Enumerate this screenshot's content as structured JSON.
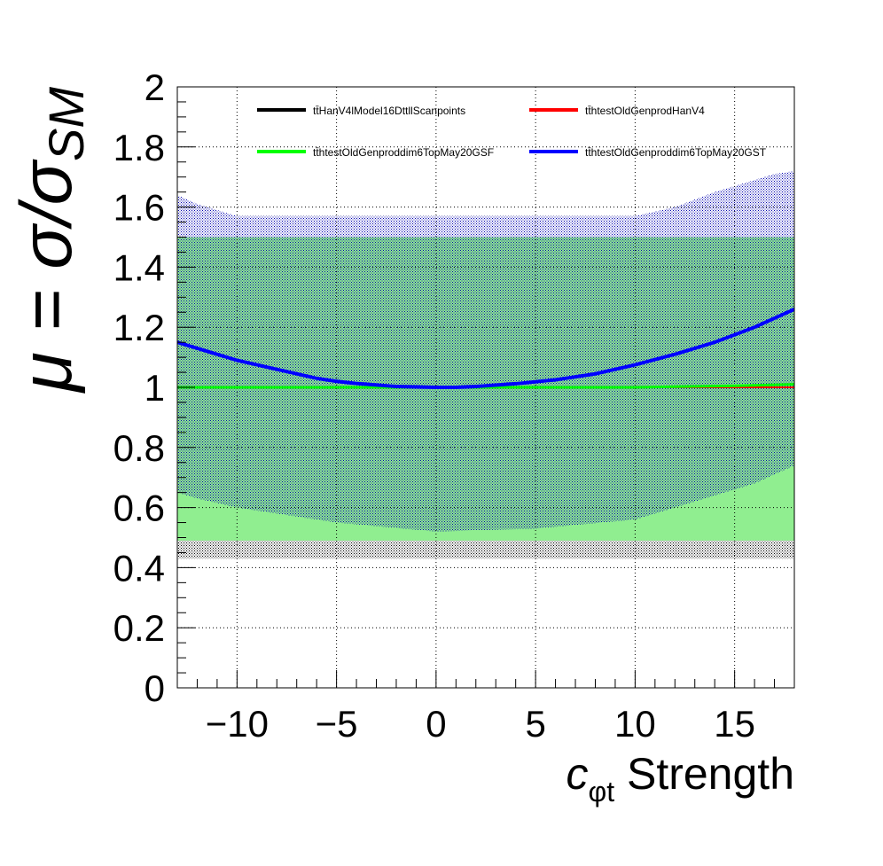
{
  "chart_data": {
    "type": "line",
    "xlabel": {
      "main": "c",
      "sub": "φt",
      "rest": " Strength"
    },
    "ylabel": {
      "prefix": "μ = σ/σ",
      "sub": "SM"
    },
    "xlim": [
      -13,
      18
    ],
    "ylim": [
      0,
      2
    ],
    "x_ticks": [
      -10,
      -5,
      0,
      5,
      10,
      15
    ],
    "x_tick_labels": [
      "−10",
      "−5",
      "0",
      "5",
      "10",
      "15"
    ],
    "y_ticks": [
      0,
      0.2,
      0.4,
      0.6,
      0.8,
      1,
      1.2,
      1.4,
      1.6,
      1.8,
      2
    ],
    "y_tick_labels": [
      "0",
      "0.2",
      "0.4",
      "0.6",
      "0.8",
      "1",
      "1.2",
      "1.4",
      "1.6",
      "1.8",
      "2"
    ],
    "grid": true,
    "legend_position": "top",
    "series": [
      {
        "name": "tt̄HanV4lModel16DttllScanpoints",
        "color": "#000000",
        "x": [
          -13,
          -10,
          -5,
          0,
          5,
          10,
          15,
          18
        ],
        "y": [
          1.0,
          1.0,
          1.0,
          1.0,
          1.0,
          1.0,
          1.0,
          1.0
        ]
      },
      {
        "name": "tt̄htestOldGenprodHanV4",
        "color": "#ff0000",
        "x": [
          -13,
          -10,
          -5,
          0,
          5,
          10,
          15,
          18
        ],
        "y": [
          1.0,
          1.0,
          1.0,
          1.0,
          1.0,
          1.0,
          1.0,
          1.0
        ]
      },
      {
        "name": "tt̄htestOldGenproddim6TopMay20GSF",
        "color": "#00ff00",
        "x": [
          -13,
          -10,
          -5,
          0,
          5,
          10,
          15,
          18
        ],
        "y": [
          1.0,
          1.0,
          1.0,
          1.0,
          1.0,
          1.0,
          1.005,
          1.01
        ]
      },
      {
        "name": "tt̄htestOldGenproddim6TopMay20GST",
        "color": "#0000ff",
        "x": [
          -13,
          -12,
          -10,
          -8,
          -6,
          -5,
          -4,
          -2,
          0,
          1,
          2,
          4,
          6,
          8,
          10,
          12,
          14,
          16,
          18
        ],
        "y": [
          1.15,
          1.13,
          1.09,
          1.06,
          1.03,
          1.02,
          1.013,
          1.003,
          1.0,
          1.0,
          1.003,
          1.012,
          1.025,
          1.045,
          1.075,
          1.11,
          1.15,
          1.2,
          1.26
        ]
      }
    ],
    "bands": [
      {
        "name": "black-uncertainty",
        "color": "#000000",
        "pattern": "dots",
        "x": [
          -13,
          18
        ],
        "lower": [
          0.43,
          0.43
        ],
        "upper": [
          1.57,
          1.57
        ]
      },
      {
        "name": "green-uncertainty",
        "color": "#90ee90",
        "pattern": "fill",
        "x": [
          -13,
          -10,
          -5,
          0,
          5,
          10,
          15,
          18
        ],
        "lower": [
          0.49,
          0.49,
          0.49,
          0.49,
          0.49,
          0.49,
          0.49,
          0.49
        ],
        "upper": [
          1.5,
          1.5,
          1.5,
          1.5,
          1.5,
          1.5,
          1.5,
          1.5
        ]
      },
      {
        "name": "blue-uncertainty",
        "color": "#0000b0",
        "pattern": "dots",
        "x": [
          -13,
          -12,
          -10,
          -5,
          0,
          5,
          10,
          12,
          14,
          16,
          17,
          18
        ],
        "lower": [
          0.65,
          0.63,
          0.6,
          0.55,
          0.52,
          0.53,
          0.56,
          0.6,
          0.64,
          0.68,
          0.71,
          0.74
        ],
        "upper": [
          1.64,
          1.61,
          1.57,
          1.57,
          1.57,
          1.57,
          1.57,
          1.6,
          1.65,
          1.69,
          1.71,
          1.72
        ]
      }
    ]
  }
}
